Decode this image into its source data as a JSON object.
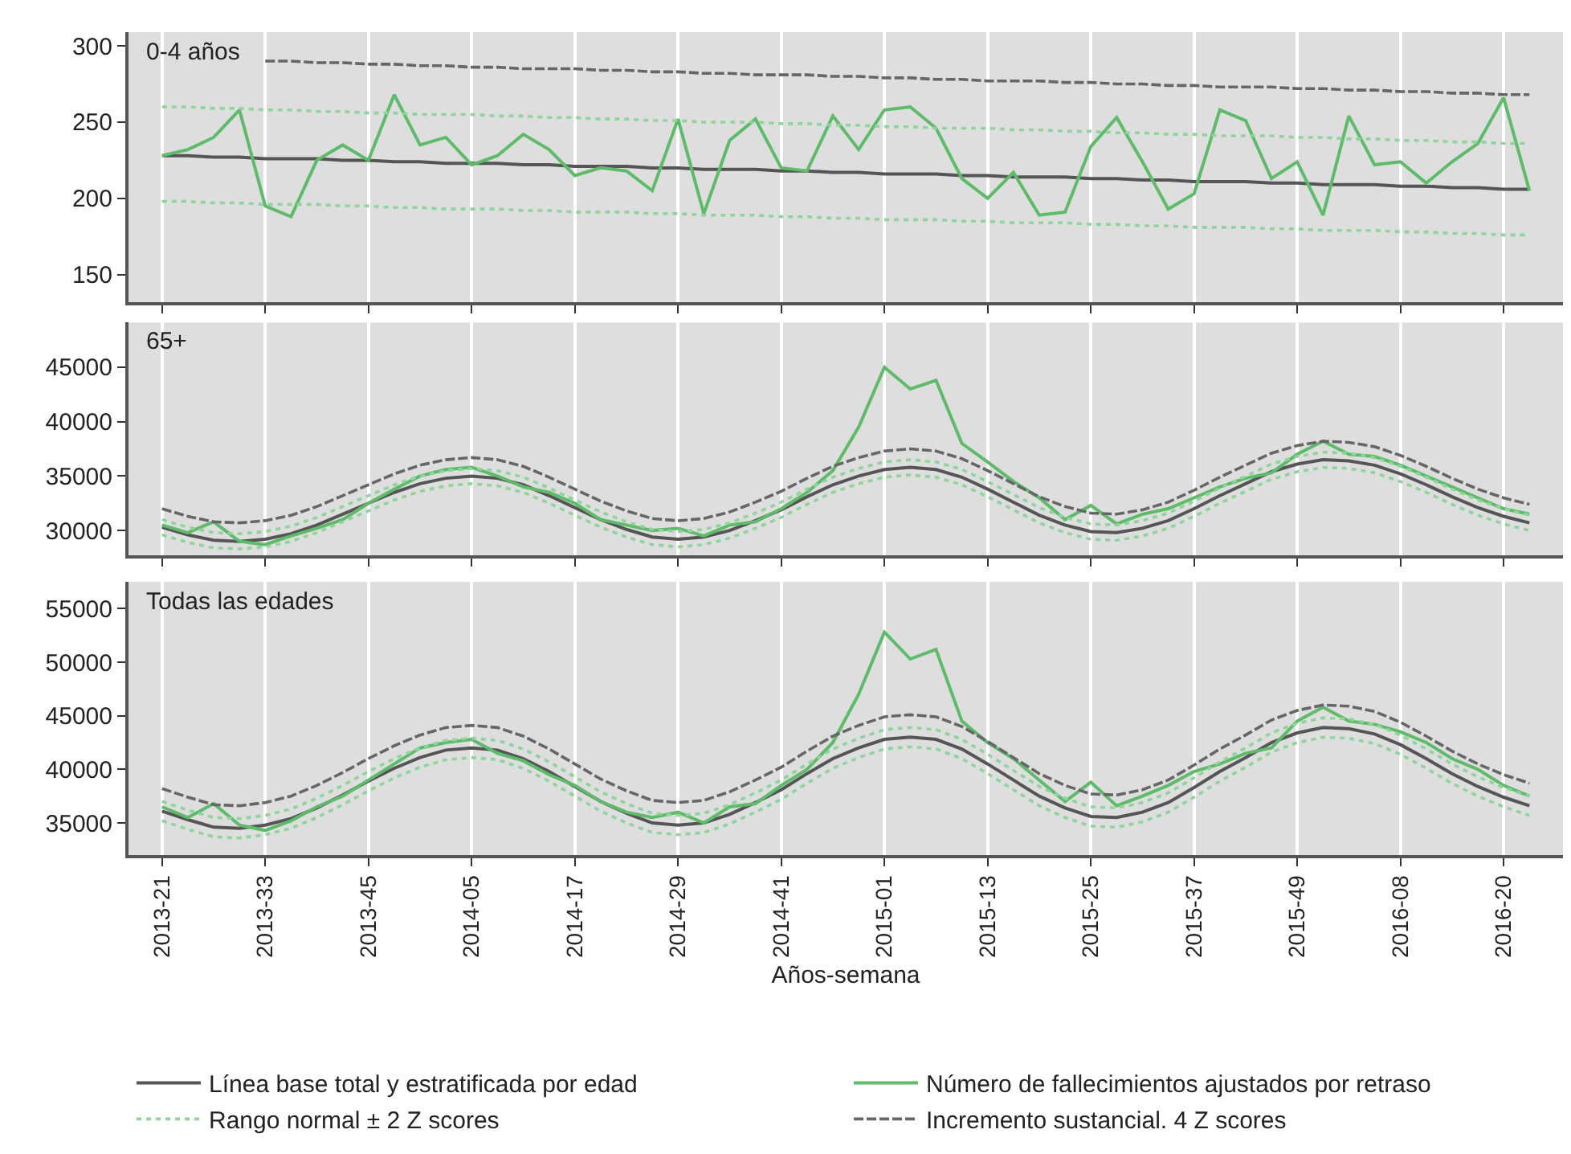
{
  "chart_data": [
    {
      "type": "line",
      "title": "0-4 años",
      "legend": "bottom",
      "marker": "none",
      "grid": "x",
      "tick_labels": "y",
      "categories": [
        "2013-21",
        null,
        null,
        null,
        "2013-33",
        null,
        null,
        null,
        "2013-45",
        null,
        null,
        null,
        "2014-05",
        null,
        null,
        null,
        "2014-17",
        null,
        null,
        null,
        "2014-29",
        null,
        null,
        null,
        "2014-41",
        null,
        null,
        null,
        "2015-01",
        null,
        null,
        null,
        "2015-13",
        null,
        null,
        null,
        "2015-25",
        null,
        null,
        null,
        "2015-37",
        null,
        null,
        null,
        "2015-49",
        null,
        null,
        null,
        "2016-08",
        null,
        null,
        null,
        "2016-20",
        null
      ],
      "ylim": [
        132,
        309
      ],
      "yticks": [
        150,
        200,
        250,
        300
      ],
      "series": [
        {
          "name": "Línea base total y estratificada por edad",
          "color": "#555555",
          "line_style": "solid",
          "values": [
            228,
            228,
            227,
            227,
            226,
            226,
            226,
            225,
            225,
            224,
            224,
            223,
            223,
            223,
            222,
            222,
            221,
            221,
            221,
            220,
            220,
            219,
            219,
            219,
            218,
            218,
            217,
            217,
            216,
            216,
            216,
            215,
            215,
            214,
            214,
            214,
            213,
            213,
            212,
            212,
            211,
            211,
            211,
            210,
            210,
            209,
            209,
            209,
            208,
            208,
            207,
            207,
            206,
            206
          ]
        },
        {
          "name": "Número de fallecimientos ajustados por retraso",
          "color": "#5dbb6a",
          "line_style": "solid",
          "values": [
            228,
            232,
            240,
            258,
            195,
            188,
            225,
            235,
            225,
            268,
            235,
            240,
            222,
            228,
            242,
            232,
            215,
            220,
            218,
            205,
            252,
            190,
            238,
            252,
            220,
            218,
            254,
            232,
            258,
            260,
            246,
            213,
            200,
            217,
            189,
            191,
            234,
            253,
            224,
            193,
            203,
            258,
            251,
            213,
            224,
            189,
            254,
            222,
            224,
            210,
            224,
            236,
            266,
            205
          ]
        },
        {
          "name": "Rango normal ± 2 Z scores",
          "color": "#8fd49a",
          "line_style": "dotted",
          "values": [
            260,
            260,
            259,
            259,
            258,
            258,
            257,
            257,
            256,
            256,
            255,
            255,
            255,
            254,
            254,
            253,
            253,
            252,
            252,
            251,
            251,
            250,
            250,
            250,
            249,
            249,
            248,
            248,
            247,
            247,
            246,
            246,
            246,
            245,
            245,
            244,
            244,
            243,
            243,
            242,
            242,
            241,
            241,
            241,
            240,
            240,
            239,
            239,
            238,
            238,
            237,
            237,
            236,
            236
          ]
        },
        {
          "color": "#8fd49a",
          "line_style": "dotted",
          "values": [
            198,
            198,
            197,
            197,
            196,
            196,
            196,
            195,
            195,
            194,
            194,
            193,
            193,
            193,
            192,
            192,
            191,
            191,
            191,
            190,
            190,
            189,
            189,
            189,
            188,
            188,
            187,
            187,
            186,
            186,
            186,
            185,
            185,
            184,
            184,
            184,
            183,
            183,
            182,
            182,
            181,
            181,
            181,
            180,
            180,
            179,
            179,
            179,
            178,
            178,
            177,
            177,
            176,
            176
          ]
        },
        {
          "name": "Incremento sustancial. 4 Z scores",
          "color": "#666666",
          "line_style": "dashed",
          "values": [
            null,
            null,
            null,
            null,
            290,
            290,
            289,
            289,
            288,
            288,
            287,
            287,
            286,
            286,
            285,
            285,
            285,
            284,
            284,
            283,
            283,
            282,
            282,
            281,
            281,
            281,
            280,
            280,
            279,
            279,
            278,
            278,
            277,
            277,
            277,
            276,
            276,
            275,
            275,
            274,
            274,
            273,
            273,
            273,
            272,
            272,
            271,
            271,
            270,
            270,
            269,
            269,
            268,
            268
          ]
        }
      ]
    },
    {
      "type": "line",
      "title": "65+",
      "marker": "none",
      "grid": "x",
      "tick_labels": "y",
      "categories": [
        "2013-21",
        null,
        null,
        null,
        "2013-33",
        null,
        null,
        null,
        "2013-45",
        null,
        null,
        null,
        "2014-05",
        null,
        null,
        null,
        "2014-17",
        null,
        null,
        null,
        "2014-29",
        null,
        null,
        null,
        "2014-41",
        null,
        null,
        null,
        "2015-01",
        null,
        null,
        null,
        "2015-13",
        null,
        null,
        null,
        "2015-25",
        null,
        null,
        null,
        "2015-37",
        null,
        null,
        null,
        "2015-49",
        null,
        null,
        null,
        "2016-08",
        null,
        null,
        null,
        "2016-20",
        null
      ],
      "ylim": [
        27700,
        49100
      ],
      "yticks": [
        30000,
        35000,
        40000,
        45000
      ],
      "series": [
        {
          "name": "Línea base total y estratificada por edad",
          "color": "#555555",
          "line_style": "solid",
          "values": [
            30300,
            29600,
            29100,
            29000,
            29200,
            29700,
            30500,
            31500,
            32500,
            33500,
            34300,
            34800,
            35000,
            34800,
            34200,
            33200,
            32100,
            31000,
            30100,
            29400,
            29200,
            29400,
            30000,
            30900,
            31900,
            33100,
            34200,
            35000,
            35600,
            35800,
            35600,
            34900,
            33800,
            32600,
            31400,
            30500,
            29900,
            29800,
            30200,
            30900,
            32000,
            33200,
            34300,
            35400,
            36100,
            36500,
            36400,
            36000,
            35200,
            34200,
            33100,
            32100,
            31300,
            30700
          ]
        },
        {
          "name": "Número de fallecimientos ajustados por retraso",
          "color": "#5dbb6a",
          "line_style": "solid",
          "values": [
            30500,
            29800,
            30800,
            29000,
            28700,
            29500,
            30200,
            31000,
            32500,
            33800,
            35000,
            35600,
            35800,
            35000,
            34000,
            33500,
            32500,
            31000,
            30500,
            30000,
            30200,
            29500,
            30500,
            30800,
            32000,
            33500,
            35500,
            39500,
            45000,
            43000,
            43800,
            38000,
            36300,
            34500,
            33000,
            31000,
            32300,
            30600,
            31500,
            32000,
            33000,
            34000,
            34800,
            35300,
            37000,
            38200,
            37000,
            36800,
            36000,
            35000,
            34000,
            33000,
            32000,
            31500
          ]
        },
        {
          "name": "Rango normal ± 2 Z scores",
          "color": "#8fd49a",
          "line_style": "dotted",
          "values": [
            31000,
            30300,
            29800,
            29700,
            29900,
            30400,
            31200,
            32200,
            33200,
            34200,
            35000,
            35500,
            35700,
            35500,
            34900,
            33900,
            32800,
            31700,
            30800,
            30100,
            29900,
            30100,
            30700,
            31600,
            32600,
            33800,
            34900,
            35700,
            36300,
            36500,
            36300,
            35600,
            34500,
            33300,
            32100,
            31200,
            30600,
            30500,
            30900,
            31600,
            32700,
            33900,
            35000,
            36100,
            36800,
            37200,
            37100,
            36700,
            35900,
            34900,
            33800,
            32800,
            32000,
            31400
          ]
        },
        {
          "color": "#8fd49a",
          "line_style": "dotted",
          "values": [
            29600,
            28900,
            28400,
            28300,
            28500,
            29000,
            29800,
            30800,
            31800,
            32800,
            33600,
            34100,
            34300,
            34100,
            33500,
            32500,
            31400,
            30300,
            29400,
            28700,
            28500,
            28700,
            29300,
            30200,
            31200,
            32400,
            33500,
            34300,
            34900,
            35100,
            34900,
            34200,
            33100,
            31900,
            30700,
            29800,
            29200,
            29100,
            29500,
            30200,
            31300,
            32500,
            33600,
            34700,
            35400,
            35800,
            35700,
            35300,
            34500,
            33500,
            32400,
            31400,
            30600,
            30000
          ]
        },
        {
          "name": "Incremento sustancial. 4 Z scores",
          "color": "#666666",
          "line_style": "dashed",
          "values": [
            32000,
            31300,
            30800,
            30700,
            30900,
            31400,
            32200,
            33200,
            34200,
            35200,
            36000,
            36500,
            36700,
            36500,
            35900,
            34900,
            33800,
            32700,
            31800,
            31100,
            30900,
            31100,
            31700,
            32600,
            33600,
            34800,
            35900,
            36700,
            37300,
            37500,
            37300,
            36600,
            35500,
            34300,
            33100,
            32200,
            31600,
            31500,
            31900,
            32600,
            33700,
            34900,
            36000,
            37100,
            37800,
            38200,
            38100,
            37700,
            36900,
            35900,
            34800,
            33800,
            33000,
            32400
          ]
        }
      ]
    },
    {
      "type": "line",
      "title": "Todas las edades",
      "xlabel": "Años-semana",
      "marker": "none",
      "grid": "x",
      "categories": [
        "2013-21",
        null,
        null,
        null,
        "2013-33",
        null,
        null,
        null,
        "2013-45",
        null,
        null,
        null,
        "2014-05",
        null,
        null,
        null,
        "2014-17",
        null,
        null,
        null,
        "2014-29",
        null,
        null,
        null,
        "2014-41",
        null,
        null,
        null,
        "2015-01",
        null,
        null,
        null,
        "2015-13",
        null,
        null,
        null,
        "2015-25",
        null,
        null,
        null,
        "2015-37",
        null,
        null,
        null,
        "2015-49",
        null,
        null,
        null,
        "2016-08",
        null,
        null,
        null,
        "2016-20",
        null
      ],
      "ylim": [
        32000,
        57500
      ],
      "yticks": [
        35000,
        40000,
        45000,
        50000,
        55000
      ],
      "series": [
        {
          "name": "Línea base total y estratificada por edad",
          "color": "#555555",
          "line_style": "solid",
          "values": [
            36100,
            35300,
            34600,
            34500,
            34800,
            35400,
            36400,
            37600,
            38900,
            40100,
            41100,
            41800,
            42000,
            41800,
            41000,
            39800,
            38400,
            37000,
            35900,
            35000,
            34800,
            35000,
            35800,
            36900,
            38100,
            39600,
            41000,
            42000,
            42800,
            43000,
            42800,
            41900,
            40500,
            39000,
            37500,
            36400,
            35600,
            35500,
            36000,
            36900,
            38300,
            39800,
            41100,
            42500,
            43400,
            43900,
            43800,
            43300,
            42300,
            41000,
            39600,
            38400,
            37400,
            36600
          ]
        },
        {
          "name": "Número de fallecimientos ajustados por retraso",
          "color": "#5dbb6a",
          "line_style": "solid",
          "values": [
            36500,
            35500,
            36800,
            34800,
            34300,
            35200,
            36500,
            37500,
            39000,
            40500,
            42000,
            42500,
            42800,
            41500,
            40800,
            39500,
            38500,
            37000,
            36000,
            35500,
            36000,
            35000,
            36500,
            36800,
            38500,
            40000,
            42500,
            47000,
            52800,
            50300,
            51200,
            44500,
            42500,
            41000,
            39000,
            37000,
            38800,
            36600,
            37500,
            38500,
            39800,
            40500,
            41500,
            42000,
            44500,
            45800,
            44500,
            44200,
            43500,
            42500,
            41000,
            40000,
            38500,
            37500
          ]
        },
        {
          "name": "Rango normal ± 2 Z scores",
          "color": "#8fd49a",
          "line_style": "dotted",
          "values": [
            37000,
            36200,
            35500,
            35400,
            35700,
            36300,
            37300,
            38500,
            39800,
            41000,
            42000,
            42700,
            42900,
            42700,
            41900,
            40700,
            39300,
            37900,
            36800,
            35900,
            35700,
            35900,
            36700,
            37800,
            39000,
            40500,
            41900,
            42900,
            43700,
            43900,
            43700,
            42800,
            41400,
            39900,
            38400,
            37300,
            36500,
            36400,
            36900,
            37800,
            39200,
            40700,
            42000,
            43400,
            44300,
            44800,
            44700,
            44200,
            43200,
            41900,
            40500,
            39300,
            38300,
            37500
          ]
        },
        {
          "color": "#8fd49a",
          "line_style": "dotted",
          "values": [
            35200,
            34400,
            33700,
            33600,
            33900,
            34500,
            35500,
            36700,
            38000,
            39200,
            40200,
            40900,
            41100,
            40900,
            40100,
            38900,
            37500,
            36100,
            35000,
            34100,
            33900,
            34100,
            34900,
            36000,
            37200,
            38700,
            40100,
            41100,
            41900,
            42100,
            41900,
            41000,
            39600,
            38100,
            36600,
            35500,
            34700,
            34600,
            35100,
            36000,
            37400,
            38900,
            40200,
            41600,
            42500,
            43000,
            42900,
            42400,
            41400,
            40100,
            38700,
            37500,
            36500,
            35700
          ]
        },
        {
          "name": "Incremento sustancial. 4 Z scores",
          "color": "#666666",
          "line_style": "dashed",
          "values": [
            38200,
            37400,
            36700,
            36600,
            36900,
            37500,
            38500,
            39700,
            41000,
            42200,
            43200,
            43900,
            44100,
            43900,
            43100,
            41900,
            40500,
            39100,
            38000,
            37100,
            36900,
            37100,
            37900,
            39000,
            40200,
            41700,
            43100,
            44100,
            44900,
            45100,
            44900,
            44000,
            42600,
            41100,
            39600,
            38500,
            37700,
            37600,
            38100,
            39000,
            40400,
            41900,
            43200,
            44600,
            45500,
            46000,
            45900,
            45400,
            44400,
            43100,
            41700,
            40500,
            39500,
            38700
          ]
        }
      ]
    }
  ]
}
